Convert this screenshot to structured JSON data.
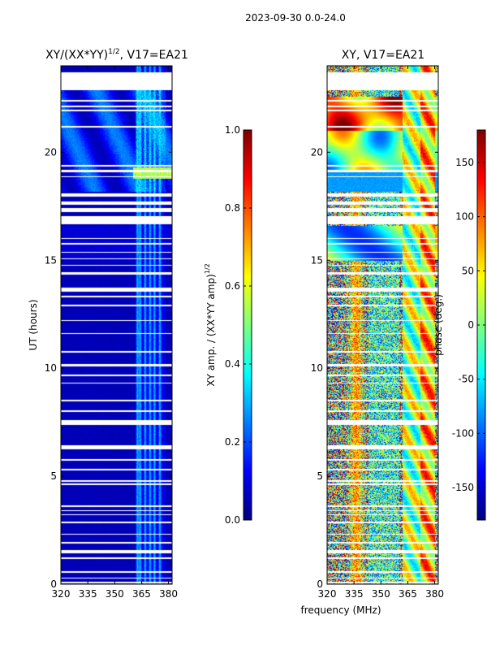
{
  "figure": {
    "suptitle": "2023-09-30 0.0-24.0",
    "shared_xlabel": "frequency (MHz)"
  },
  "chart_data": [
    {
      "type": "heatmap",
      "title_main": "XY/(XX*YY)",
      "title_sup": "1/2",
      "title_tail": ", V17=EA21",
      "xlabel": "",
      "ylabel": "UT (hours)",
      "xlim": [
        320,
        382
      ],
      "ylim": [
        0,
        24
      ],
      "xticks": [
        320,
        335,
        350,
        365,
        380
      ],
      "yticks": [
        0,
        5,
        10,
        15,
        20
      ],
      "colorbar": {
        "label_main": "XY amp. / (XX*YY amp)",
        "label_sup": "1/2",
        "range": [
          0.0,
          1.0
        ],
        "ticks": [
          "0.0",
          "0.2",
          "0.4",
          "0.6",
          "0.8",
          "1.0"
        ],
        "colormap": "jet"
      }
    },
    {
      "type": "heatmap",
      "title": "XY, V17=EA21",
      "xlabel": "frequency (MHz)",
      "ylabel": "",
      "xlim": [
        320,
        382
      ],
      "ylim": [
        0,
        24
      ],
      "xticks": [
        320,
        335,
        350,
        365,
        380
      ],
      "yticks": [
        0,
        5,
        10,
        15,
        20
      ],
      "colorbar": {
        "label": "phase (deg.)",
        "range": [
          -180,
          180
        ],
        "ticks": [
          "-150",
          "-100",
          "-50",
          "0",
          "50",
          "100",
          "150"
        ],
        "colormap": "jet"
      }
    }
  ],
  "data_gaps_hours": [
    [
      0.05,
      0.12
    ],
    [
      0.28,
      0.33
    ],
    [
      0.55,
      0.62
    ],
    [
      1.2,
      1.26
    ],
    [
      1.45,
      1.58
    ],
    [
      1.9,
      1.96
    ],
    [
      2.3,
      2.35
    ],
    [
      2.85,
      2.92
    ],
    [
      3.2,
      3.26
    ],
    [
      3.4,
      3.46
    ],
    [
      3.6,
      3.66
    ],
    [
      4.6,
      4.7
    ],
    [
      4.75,
      4.82
    ],
    [
      5.3,
      5.36
    ],
    [
      5.75,
      5.82
    ],
    [
      6.25,
      6.45
    ],
    [
      7.4,
      7.6
    ],
    [
      8.0,
      8.06
    ],
    [
      8.5,
      8.56
    ],
    [
      9.3,
      9.36
    ],
    [
      9.65,
      9.72
    ],
    [
      10.1,
      10.2
    ],
    [
      10.75,
      10.82
    ],
    [
      11.6,
      11.66
    ],
    [
      12.2,
      12.26
    ],
    [
      12.9,
      12.96
    ],
    [
      13.3,
      13.38
    ],
    [
      13.55,
      13.75
    ],
    [
      14.35,
      14.45
    ],
    [
      14.75,
      14.82
    ],
    [
      15.05,
      15.12
    ],
    [
      15.35,
      15.42
    ],
    [
      15.75,
      15.82
    ],
    [
      16.0,
      16.06
    ],
    [
      16.7,
      17.05
    ],
    [
      17.25,
      17.45
    ],
    [
      17.6,
      17.75
    ],
    [
      17.95,
      18.12
    ],
    [
      18.85,
      18.92
    ],
    [
      19.1,
      19.22
    ],
    [
      19.35,
      19.42
    ],
    [
      21.15,
      21.22
    ],
    [
      21.9,
      21.98
    ],
    [
      22.1,
      22.16
    ],
    [
      22.35,
      22.45
    ],
    [
      22.9,
      23.7
    ]
  ]
}
